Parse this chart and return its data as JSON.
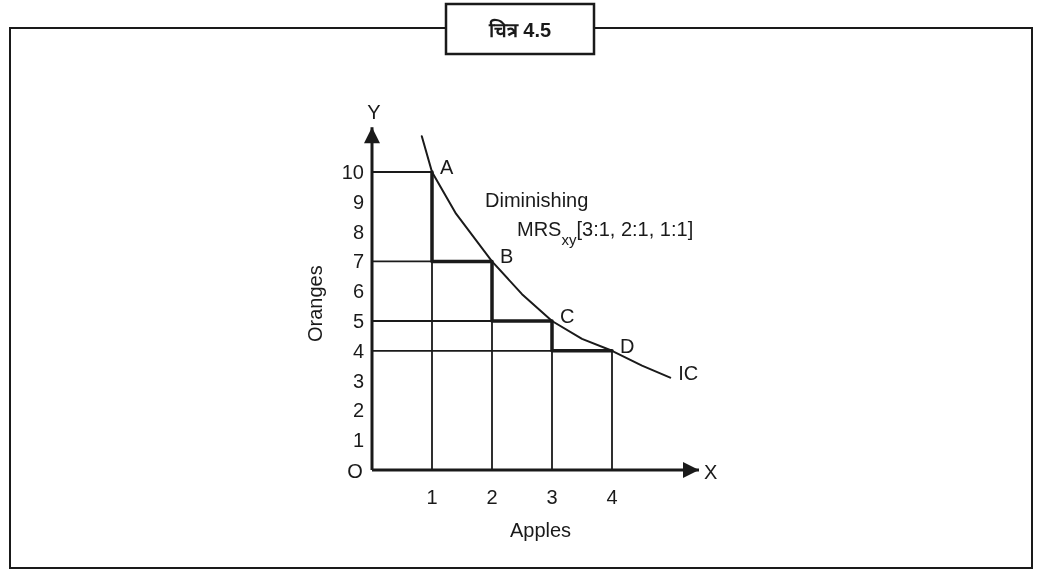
{
  "chart_data": {
    "type": "line",
    "title": "चित्र 4.5",
    "xlabel": "Apples",
    "ylabel": "Oranges",
    "xlim": [
      0,
      5.45
    ],
    "ylim": [
      0,
      11.5
    ],
    "xticks": [
      1,
      2,
      3,
      4
    ],
    "yticks": [
      1,
      2,
      3,
      4,
      5,
      6,
      7,
      8,
      9,
      10
    ],
    "grid": false,
    "marker": "none",
    "line_style": "solid",
    "series": [
      {
        "type": "line",
        "color": "#1a1a1a",
        "x": [
          0,
          1,
          1
        ],
        "values": [
          10,
          10,
          0
        ]
      },
      {
        "type": "line",
        "color": "#1a1a1a",
        "x": [
          0,
          2,
          2
        ],
        "values": [
          7,
          7,
          0
        ]
      },
      {
        "type": "line",
        "color": "#1a1a1a",
        "x": [
          0,
          3,
          3
        ],
        "values": [
          5,
          5,
          0
        ]
      },
      {
        "type": "line",
        "color": "#1a1a1a",
        "x": [
          0,
          4,
          4
        ],
        "values": [
          4,
          4,
          0
        ]
      },
      {
        "type": "step",
        "color": "#1a1a1a",
        "x": [
          1,
          2,
          3,
          4
        ],
        "values": [
          10,
          7,
          5,
          4
        ]
      },
      {
        "type": "line",
        "color": "#1a1a1a",
        "x": [
          0.83,
          1,
          1.4,
          2,
          2.5,
          3,
          3.5,
          4,
          4.5,
          4.97
        ],
        "values": [
          11.2,
          10,
          8.6,
          7,
          5.9,
          5,
          4.4,
          4,
          3.5,
          3.1
        ]
      }
    ],
    "annotations": [
      {
        "text": "A",
        "x": 1,
        "y": 10
      },
      {
        "text": "B",
        "x": 2,
        "y": 7
      },
      {
        "text": "C",
        "x": 3,
        "y": 5
      },
      {
        "text": "D",
        "x": 4,
        "y": 4
      },
      {
        "text": "IC",
        "x": 4.97,
        "y": 3.1
      },
      "O",
      "X",
      "Y",
      "Diminishing\nMRS$_{xy}$[3:1, 2:1, 1:1]"
    ]
  }
}
